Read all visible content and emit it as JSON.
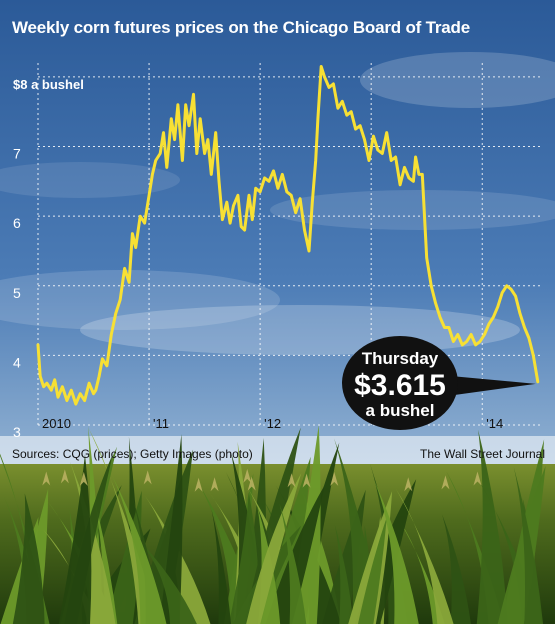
{
  "title": "Weekly corn futures prices on the Chicago Board of Trade",
  "sources": "Sources: CQG (prices); Getty Images (photo)",
  "credit": "The Wall Street Journal",
  "colors": {
    "line": "#f7e034",
    "grid": "#ffffff",
    "sky_top": "#2f5f9e",
    "sky_bottom": "#cfdce9",
    "callout_bg": "#111111",
    "callout_text": "#ffffff"
  },
  "callout": {
    "day": "Thursday",
    "price": "$3.615",
    "unit": "a bushel"
  },
  "chart_data": {
    "type": "line",
    "title": "Weekly corn futures prices on the Chicago Board of Trade",
    "ylabel": "$8 a bushel",
    "ylim": [
      3,
      8.2
    ],
    "y_ticks": [
      3,
      4,
      5,
      6,
      7,
      8
    ],
    "y_tick_labels": [
      "3",
      "4",
      "5",
      "6",
      "7",
      "$8 a bushel"
    ],
    "xlim": [
      2010.0,
      2014.52
    ],
    "x_ticks": [
      2010,
      2011,
      2012,
      2013,
      2014
    ],
    "x_tick_labels": [
      "2010",
      "'11",
      "'12",
      "",
      "'14"
    ],
    "grid": true,
    "series": [
      {
        "x": [
          2010.0,
          2010.02,
          2010.05,
          2010.08,
          2010.12,
          2010.15,
          2010.18,
          2010.22,
          2010.26,
          2010.3,
          2010.34,
          2010.38,
          2010.42,
          2010.46,
          2010.5,
          2010.52,
          2010.55,
          2010.58,
          2010.62,
          2010.66,
          2010.7,
          2010.74,
          2010.78,
          2010.82,
          2010.85,
          2010.88,
          2010.92,
          2010.96,
          2011.0,
          2011.03,
          2011.06,
          2011.1,
          2011.13,
          2011.16,
          2011.2,
          2011.23,
          2011.26,
          2011.3,
          2011.33,
          2011.36,
          2011.4,
          2011.43,
          2011.46,
          2011.5,
          2011.53,
          2011.56,
          2011.6,
          2011.63,
          2011.66,
          2011.7,
          2011.73,
          2011.76,
          2011.8,
          2011.83,
          2011.86,
          2011.9,
          2011.93,
          2011.96,
          2012.0,
          2012.04,
          2012.08,
          2012.12,
          2012.16,
          2012.2,
          2012.24,
          2012.28,
          2012.32,
          2012.36,
          2012.4,
          2012.44,
          2012.47,
          2012.5,
          2012.52,
          2012.55,
          2012.58,
          2012.62,
          2012.66,
          2012.7,
          2012.74,
          2012.78,
          2012.82,
          2012.86,
          2012.9,
          2012.94,
          2012.98,
          2013.02,
          2013.06,
          2013.1,
          2013.14,
          2013.18,
          2013.22,
          2013.26,
          2013.3,
          2013.34,
          2013.38,
          2013.4,
          2013.43,
          2013.46,
          2013.5,
          2013.54,
          2013.58,
          2013.62,
          2013.66,
          2013.7,
          2013.74,
          2013.78,
          2013.82,
          2013.86,
          2013.9,
          2013.94,
          2013.98,
          2014.02,
          2014.06,
          2014.1,
          2014.14,
          2014.18,
          2014.22,
          2014.26,
          2014.3,
          2014.34,
          2014.38,
          2014.42,
          2014.46,
          2014.5
        ],
        "y": [
          4.15,
          3.7,
          3.55,
          3.6,
          3.5,
          3.65,
          3.4,
          3.55,
          3.35,
          3.5,
          3.3,
          3.45,
          3.35,
          3.6,
          3.45,
          3.5,
          3.7,
          3.95,
          3.85,
          4.3,
          4.6,
          4.8,
          5.25,
          5.05,
          5.75,
          5.55,
          6.0,
          5.9,
          6.3,
          6.6,
          6.8,
          6.9,
          7.2,
          6.7,
          7.4,
          7.1,
          7.6,
          6.8,
          7.6,
          7.3,
          7.75,
          6.9,
          7.4,
          6.9,
          7.1,
          6.6,
          7.2,
          6.5,
          5.95,
          6.2,
          5.9,
          6.15,
          6.3,
          5.85,
          5.8,
          6.3,
          5.95,
          6.4,
          6.35,
          6.55,
          6.5,
          6.65,
          6.4,
          6.6,
          6.35,
          6.3,
          6.05,
          6.25,
          5.8,
          5.5,
          6.2,
          6.8,
          7.4,
          8.15,
          8.0,
          7.85,
          7.9,
          7.55,
          7.65,
          7.45,
          7.5,
          7.25,
          7.3,
          7.1,
          6.8,
          7.15,
          6.95,
          6.9,
          7.2,
          6.8,
          6.85,
          6.45,
          6.7,
          6.55,
          6.5,
          6.85,
          6.6,
          6.6,
          5.4,
          5.0,
          4.75,
          4.55,
          4.4,
          4.4,
          4.2,
          4.3,
          4.15,
          4.2,
          4.3,
          4.15,
          4.2,
          4.3,
          4.45,
          4.55,
          4.7,
          4.9,
          5.0,
          4.95,
          4.85,
          4.6,
          4.4,
          4.25,
          4.0,
          3.62
        ]
      }
    ]
  }
}
